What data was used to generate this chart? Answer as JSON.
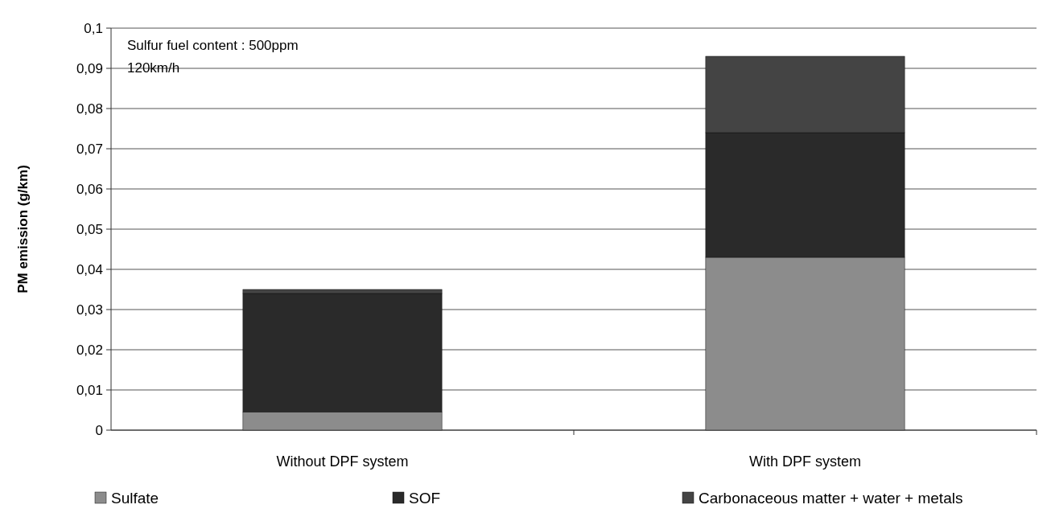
{
  "chart_data": {
    "type": "bar",
    "stacked": true,
    "ylabel": "PM emission (g/km)",
    "categories": [
      "Without DPF system",
      "With DPF system"
    ],
    "series": [
      {
        "name": "Sulfate",
        "color": "#8c8c8c",
        "values": [
          0.0045,
          0.043
        ]
      },
      {
        "name": "SOF",
        "color": "#2a2a2a",
        "values": [
          0.0295,
          0.031
        ]
      },
      {
        "name": "Carbonaceous matter + water + metals",
        "color": "#444444",
        "values": [
          0.001,
          0.019
        ]
      }
    ],
    "ylim": [
      0,
      0.1
    ],
    "yticks": [
      {
        "value": 0,
        "label": "0"
      },
      {
        "value": 0.01,
        "label": "0,01"
      },
      {
        "value": 0.02,
        "label": "0,02"
      },
      {
        "value": 0.03,
        "label": "0,03"
      },
      {
        "value": 0.04,
        "label": "0,04"
      },
      {
        "value": 0.05,
        "label": "0,05"
      },
      {
        "value": 0.06,
        "label": "0,06"
      },
      {
        "value": 0.07,
        "label": "0,07"
      },
      {
        "value": 0.08,
        "label": "0,08"
      },
      {
        "value": 0.09,
        "label": "0,09"
      },
      {
        "value": 0.1,
        "label": "0,1"
      }
    ],
    "grid": "y",
    "legend": "bottom",
    "annotations": [
      "Sulfur fuel content : 500ppm",
      "120km/h"
    ]
  }
}
